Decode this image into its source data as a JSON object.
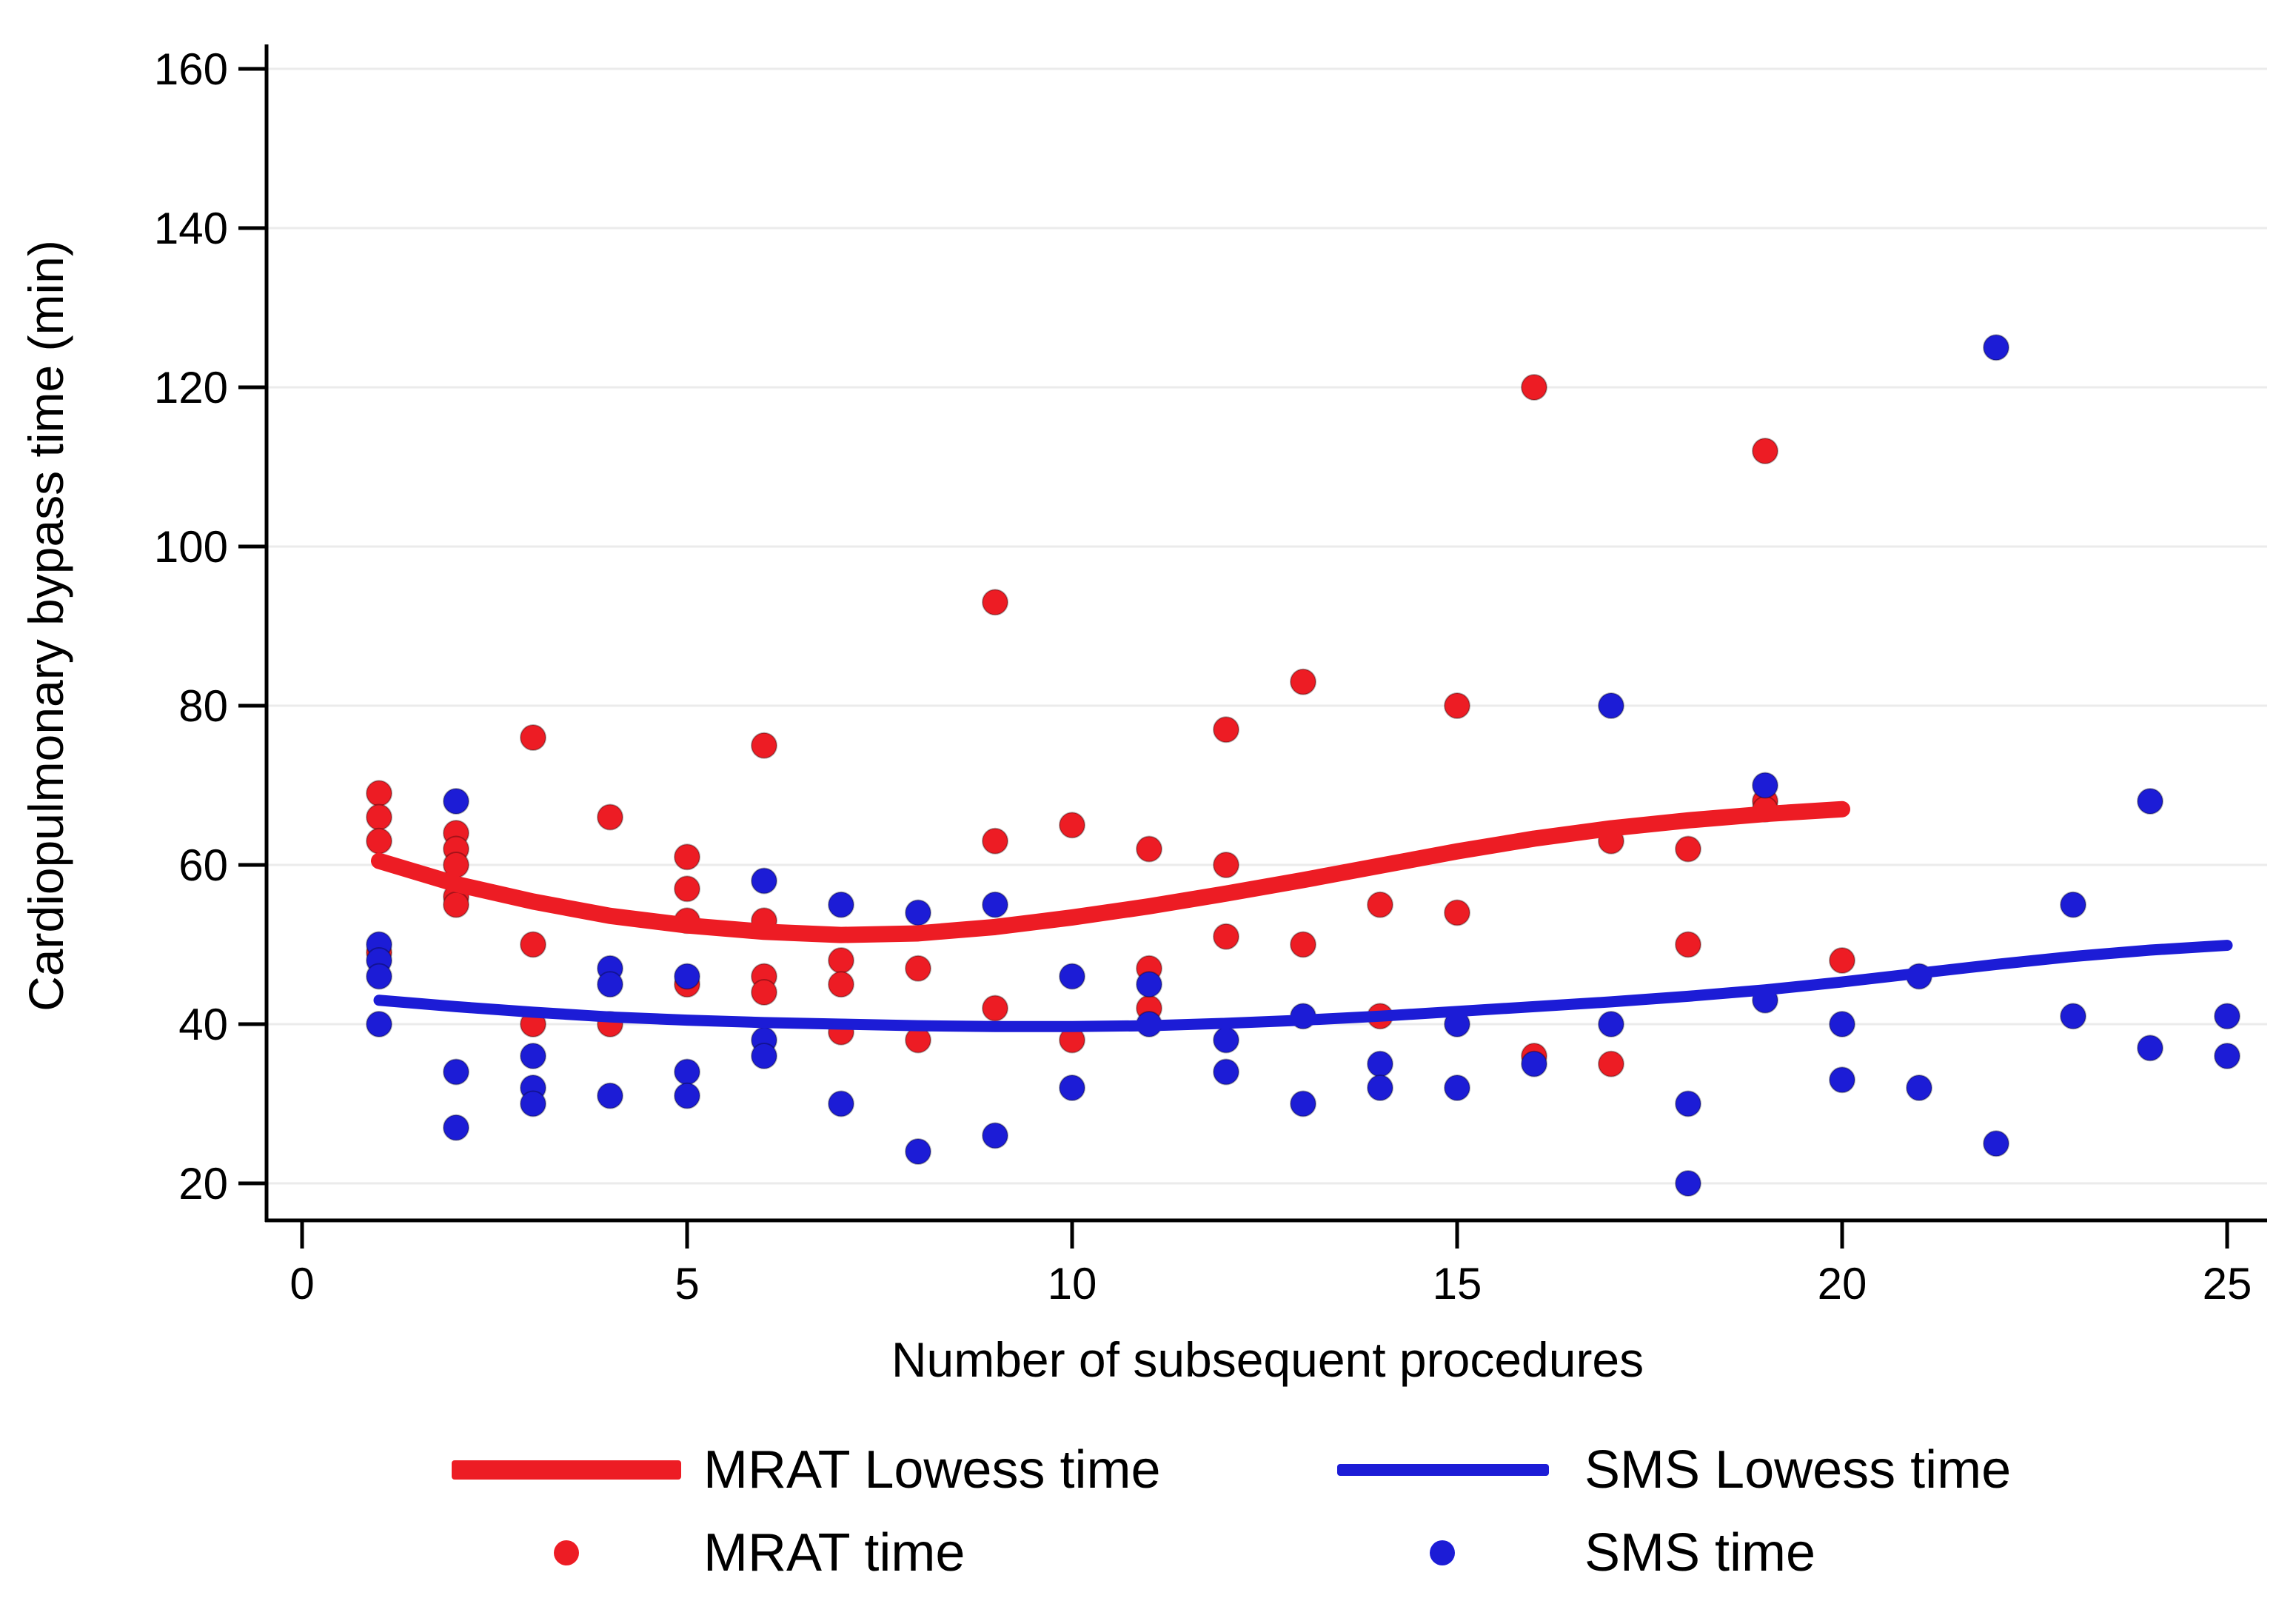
{
  "figure": {
    "xlabel": "Number of subsequent procedures",
    "ylabel": "Cardiopulmonary bypass time (min)"
  },
  "legend": {
    "mrat_lowess_label": "MRAT Lowess time",
    "sms_lowess_label": "SMS Lowess time",
    "mrat_points_label": "MRAT time",
    "sms_points_label": "SMS time"
  },
  "colors": {
    "mrat": "#ed1c24",
    "sms": "#1c1cd6",
    "grid": "#ebebeb",
    "axis": "#000000",
    "text": "#000000"
  },
  "chart_data": {
    "type": "scatter",
    "title": "",
    "xlabel": "Number of subsequent procedures",
    "ylabel": "Cardiopulmonary bypass time (min)",
    "xlim": [
      0,
      25.5
    ],
    "ylim": [
      15,
      165
    ],
    "xticks": [
      0,
      5,
      10,
      15,
      20,
      25
    ],
    "yticks": [
      20,
      40,
      60,
      80,
      100,
      120,
      140,
      160
    ],
    "grid": "horizontal",
    "legend_position": "bottom",
    "series": [
      {
        "name": "MRAT time",
        "kind": "scatter",
        "color": "#ed1c24",
        "points": [
          [
            1,
            69
          ],
          [
            1,
            66
          ],
          [
            1,
            63
          ],
          [
            1,
            49
          ],
          [
            2,
            64
          ],
          [
            2,
            62
          ],
          [
            2,
            60
          ],
          [
            2,
            56
          ],
          [
            2,
            55
          ],
          [
            3,
            76
          ],
          [
            3,
            50
          ],
          [
            3,
            40
          ],
          [
            4,
            66
          ],
          [
            4,
            40
          ],
          [
            5,
            61
          ],
          [
            5,
            57
          ],
          [
            5,
            53
          ],
          [
            5,
            45
          ],
          [
            6,
            75
          ],
          [
            6,
            53
          ],
          [
            6,
            46
          ],
          [
            6,
            44
          ],
          [
            7,
            48
          ],
          [
            7,
            45
          ],
          [
            7,
            39
          ],
          [
            8,
            47
          ],
          [
            8,
            38
          ],
          [
            9,
            93
          ],
          [
            9,
            63
          ],
          [
            9,
            42
          ],
          [
            10,
            65
          ],
          [
            10,
            38
          ],
          [
            11,
            62
          ],
          [
            11,
            47
          ],
          [
            11,
            42
          ],
          [
            12,
            77
          ],
          [
            12,
            60
          ],
          [
            12,
            51
          ],
          [
            13,
            83
          ],
          [
            13,
            50
          ],
          [
            14,
            55
          ],
          [
            14,
            41
          ],
          [
            15,
            80
          ],
          [
            15,
            54
          ],
          [
            16,
            120
          ],
          [
            16,
            36
          ],
          [
            17,
            63
          ],
          [
            17,
            35
          ],
          [
            18,
            62
          ],
          [
            18,
            50
          ],
          [
            19,
            112
          ],
          [
            19,
            68
          ],
          [
            19,
            67
          ],
          [
            20,
            48
          ]
        ]
      },
      {
        "name": "SMS time",
        "kind": "scatter",
        "color": "#1c1cd6",
        "points": [
          [
            1,
            50
          ],
          [
            1,
            48
          ],
          [
            1,
            46
          ],
          [
            1,
            40
          ],
          [
            2,
            68
          ],
          [
            2,
            34
          ],
          [
            2,
            27
          ],
          [
            3,
            36
          ],
          [
            3,
            32
          ],
          [
            3,
            30
          ],
          [
            4,
            47
          ],
          [
            4,
            45
          ],
          [
            4,
            31
          ],
          [
            5,
            46
          ],
          [
            5,
            34
          ],
          [
            5,
            31
          ],
          [
            6,
            58
          ],
          [
            6,
            38
          ],
          [
            6,
            36
          ],
          [
            7,
            55
          ],
          [
            7,
            30
          ],
          [
            8,
            54
          ],
          [
            8,
            24
          ],
          [
            9,
            55
          ],
          [
            9,
            26
          ],
          [
            10,
            46
          ],
          [
            10,
            32
          ],
          [
            11,
            45
          ],
          [
            11,
            40
          ],
          [
            12,
            38
          ],
          [
            12,
            34
          ],
          [
            13,
            41
          ],
          [
            13,
            30
          ],
          [
            14,
            35
          ],
          [
            14,
            32
          ],
          [
            15,
            40
          ],
          [
            15,
            32
          ],
          [
            16,
            35
          ],
          [
            17,
            80
          ],
          [
            17,
            40
          ],
          [
            18,
            30
          ],
          [
            18,
            20
          ],
          [
            19,
            70
          ],
          [
            19,
            43
          ],
          [
            20,
            40
          ],
          [
            20,
            33
          ],
          [
            21,
            46
          ],
          [
            21,
            32
          ],
          [
            22,
            125
          ],
          [
            22,
            25
          ],
          [
            23,
            55
          ],
          [
            23,
            41
          ],
          [
            24,
            68
          ],
          [
            24,
            37
          ],
          [
            25,
            41
          ],
          [
            25,
            36
          ]
        ]
      },
      {
        "name": "MRAT Lowess time",
        "kind": "line",
        "color": "#ed1c24",
        "width": 22,
        "points": [
          [
            1,
            60.5
          ],
          [
            2,
            57.6
          ],
          [
            3,
            55.4
          ],
          [
            4,
            53.6
          ],
          [
            5,
            52.4
          ],
          [
            6,
            51.6
          ],
          [
            7,
            51.2
          ],
          [
            8,
            51.4
          ],
          [
            9,
            52.2
          ],
          [
            10,
            53.4
          ],
          [
            11,
            54.8
          ],
          [
            12,
            56.4
          ],
          [
            13,
            58.1
          ],
          [
            14,
            59.9
          ],
          [
            15,
            61.7
          ],
          [
            16,
            63.3
          ],
          [
            17,
            64.6
          ],
          [
            18,
            65.6
          ],
          [
            19,
            66.4
          ],
          [
            20,
            67
          ]
        ]
      },
      {
        "name": "SMS Lowess time",
        "kind": "line",
        "color": "#1c1cd6",
        "width": 15,
        "points": [
          [
            1,
            43
          ],
          [
            2,
            42.2
          ],
          [
            3,
            41.5
          ],
          [
            4,
            40.9
          ],
          [
            5,
            40.5
          ],
          [
            6,
            40.2
          ],
          [
            7,
            40
          ],
          [
            8,
            39.8
          ],
          [
            9,
            39.7
          ],
          [
            10,
            39.7
          ],
          [
            11,
            39.8
          ],
          [
            12,
            40.1
          ],
          [
            13,
            40.5
          ],
          [
            14,
            41
          ],
          [
            15,
            41.6
          ],
          [
            16,
            42.2
          ],
          [
            17,
            42.8
          ],
          [
            18,
            43.5
          ],
          [
            19,
            44.3
          ],
          [
            20,
            45.3
          ],
          [
            21,
            46.4
          ],
          [
            22,
            47.5
          ],
          [
            23,
            48.5
          ],
          [
            24,
            49.3
          ],
          [
            25,
            49.9
          ]
        ]
      }
    ]
  }
}
